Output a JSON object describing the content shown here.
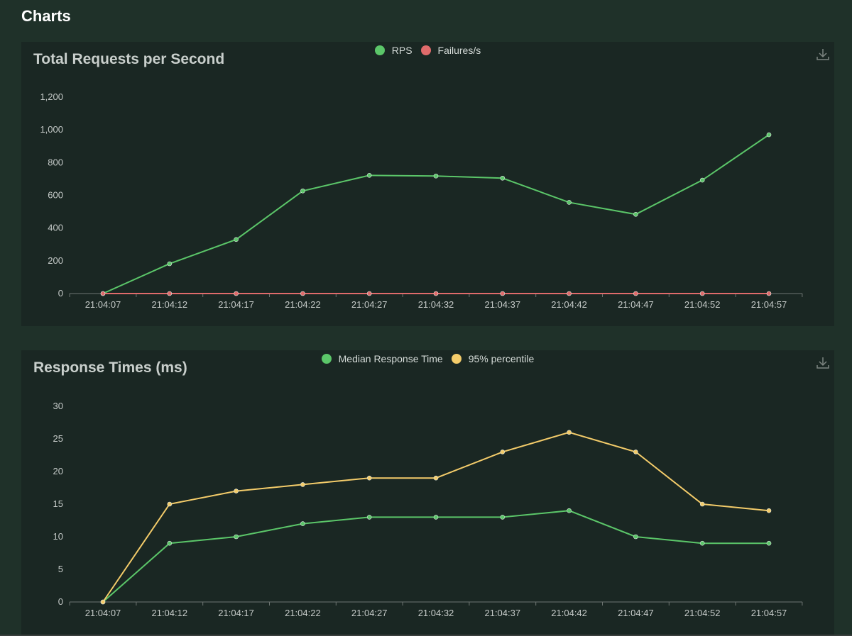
{
  "page": {
    "title": "Charts"
  },
  "colors": {
    "green": "#5bc669",
    "red": "#e06b6b",
    "yellow": "#f4cc6a"
  },
  "charts": [
    {
      "id": "rps",
      "title": "Total Requests per Second",
      "legend": [
        {
          "label": "RPS",
          "color": "#5bc669"
        },
        {
          "label": "Failures/s",
          "color": "#e06b6b"
        }
      ]
    },
    {
      "id": "rt",
      "title": "Response Times (ms)",
      "legend": [
        {
          "label": "Median Response Time",
          "color": "#5bc669"
        },
        {
          "label": "95% percentile",
          "color": "#f4cc6a"
        }
      ]
    }
  ],
  "chart_data": [
    {
      "type": "line",
      "title": "Total Requests per Second",
      "categories": [
        "21:04:07",
        "21:04:12",
        "21:04:17",
        "21:04:22",
        "21:04:27",
        "21:04:32",
        "21:04:37",
        "21:04:42",
        "21:04:47",
        "21:04:52",
        "21:04:57"
      ],
      "ylim": [
        0,
        1200
      ],
      "yticks": [
        0,
        200,
        400,
        600,
        800,
        1000,
        1200
      ],
      "ytick_labels": [
        "0",
        "200",
        "400",
        "600",
        "800",
        "1,000",
        "1,200"
      ],
      "series": [
        {
          "name": "RPS",
          "color": "#5bc669",
          "values": [
            0,
            182,
            330,
            627,
            722,
            718,
            705,
            557,
            484,
            693,
            970
          ]
        },
        {
          "name": "Failures/s",
          "color": "#e06b6b",
          "values": [
            0,
            0,
            0,
            0,
            0,
            0,
            0,
            0,
            0,
            0,
            0
          ]
        }
      ]
    },
    {
      "type": "line",
      "title": "Response Times (ms)",
      "categories": [
        "21:04:07",
        "21:04:12",
        "21:04:17",
        "21:04:22",
        "21:04:27",
        "21:04:32",
        "21:04:37",
        "21:04:42",
        "21:04:47",
        "21:04:52",
        "21:04:57"
      ],
      "ylim": [
        0,
        30
      ],
      "yticks": [
        0,
        5,
        10,
        15,
        20,
        25,
        30
      ],
      "ytick_labels": [
        "0",
        "5",
        "10",
        "15",
        "20",
        "25",
        "30"
      ],
      "series": [
        {
          "name": "Median Response Time",
          "color": "#5bc669",
          "values": [
            0,
            9,
            10,
            12,
            13,
            13,
            13,
            14,
            10,
            9,
            9
          ]
        },
        {
          "name": "95% percentile",
          "color": "#f4cc6a",
          "values": [
            0,
            15,
            17,
            18,
            19,
            19,
            23,
            26,
            23,
            15,
            14
          ]
        }
      ]
    }
  ]
}
